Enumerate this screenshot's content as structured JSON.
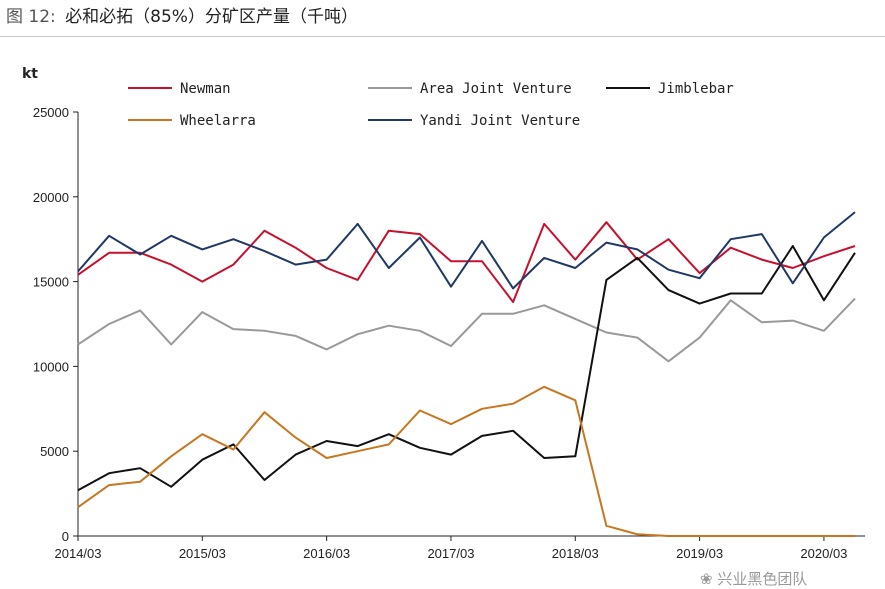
{
  "caption": {
    "figure_label": "图 12:",
    "title": "必和必拓（85%）分矿区产量（千吨）"
  },
  "watermark": "❀ 兴业黑色团队",
  "chart_data": {
    "type": "line",
    "title": "必和必拓（85%）分矿区产量（千吨）",
    "ylabel": "kt",
    "xlabel": "",
    "ylim": [
      0,
      25000
    ],
    "yticks": [
      0,
      5000,
      10000,
      15000,
      20000,
      25000
    ],
    "x_tick_labels": [
      "2014/03",
      "2015/03",
      "2016/03",
      "2017/03",
      "2018/03",
      "2019/03",
      "2020/03"
    ],
    "x": [
      "2014/03",
      "2014/06",
      "2014/09",
      "2014/12",
      "2015/03",
      "2015/06",
      "2015/09",
      "2015/12",
      "2016/03",
      "2016/06",
      "2016/09",
      "2016/12",
      "2017/03",
      "2017/06",
      "2017/09",
      "2017/12",
      "2018/03",
      "2018/06",
      "2018/09",
      "2018/12",
      "2019/03",
      "2019/06",
      "2019/09",
      "2019/12",
      "2020/03",
      "2020/06"
    ],
    "legend_position": "top",
    "grid": false,
    "series": [
      {
        "name": "Newman",
        "color": "#c8102e",
        "values": [
          15400,
          16700,
          16700,
          16000,
          15000,
          16000,
          18000,
          17000,
          15800,
          15100,
          18000,
          17800,
          16200,
          16200,
          13800,
          18400,
          16300,
          18500,
          16300,
          17500,
          15500,
          17000,
          16300,
          15800,
          16500,
          17100
        ]
      },
      {
        "name": "Area Joint Venture",
        "color": "#999999",
        "values": [
          11300,
          12500,
          13300,
          11300,
          13200,
          12200,
          12100,
          11800,
          11000,
          11900,
          12400,
          12100,
          11200,
          13100,
          13100,
          13600,
          12800,
          12000,
          11700,
          10300,
          11700,
          13900,
          12600,
          12700,
          12100,
          14000
        ]
      },
      {
        "name": "Jimblebar",
        "color": "#111111",
        "values": [
          2700,
          3700,
          4000,
          2900,
          4500,
          5400,
          3300,
          4800,
          5600,
          5300,
          6000,
          5200,
          4800,
          5900,
          6200,
          4600,
          4700,
          15100,
          16400,
          14500,
          13700,
          14300,
          14300,
          17100,
          13900,
          16700
        ]
      },
      {
        "name": "Wheelarra",
        "color": "#c8761f",
        "values": [
          1700,
          3000,
          3200,
          4700,
          6000,
          5100,
          7300,
          5800,
          4600,
          5000,
          5400,
          7400,
          6600,
          7500,
          7800,
          8800,
          8000,
          600,
          100,
          0,
          0,
          0,
          0,
          0,
          0,
          0
        ]
      },
      {
        "name": "Yandi Joint Venture",
        "color": "#1f3864",
        "values": [
          15600,
          17700,
          16600,
          17700,
          16900,
          17500,
          16800,
          16000,
          16300,
          18400,
          15800,
          17600,
          14700,
          17400,
          14600,
          16400,
          15800,
          17300,
          16900,
          15700,
          15200,
          17500,
          17800,
          14900,
          17600,
          19100
        ]
      }
    ]
  }
}
